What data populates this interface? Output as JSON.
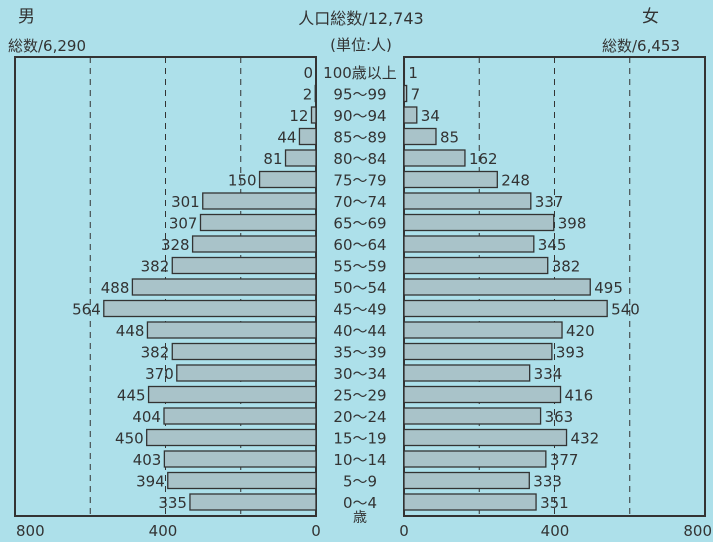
{
  "chart_data": {
    "type": "bar",
    "title": "人口総数/12,743",
    "subtitle": "(単位:人)",
    "male_label": "男",
    "male_total": "総数/6,290",
    "female_label": "女",
    "female_total": "総数/6,453",
    "age_unit": "歳",
    "categories": [
      "100歳以上",
      "95〜99",
      "90〜94",
      "85〜89",
      "80〜84",
      "75〜79",
      "70〜74",
      "65〜69",
      "60〜64",
      "55〜59",
      "50〜54",
      "45〜49",
      "40〜44",
      "35〜39",
      "30〜34",
      "25〜29",
      "20〜24",
      "15〜19",
      "10〜14",
      "5〜9",
      "0〜4"
    ],
    "series": [
      {
        "name": "男",
        "values": [
          0,
          2,
          12,
          44,
          81,
          150,
          301,
          307,
          328,
          382,
          488,
          564,
          448,
          382,
          370,
          445,
          404,
          450,
          403,
          394,
          335
        ]
      },
      {
        "name": "女",
        "values": [
          1,
          7,
          34,
          85,
          162,
          248,
          337,
          398,
          345,
          382,
          495,
          540,
          420,
          393,
          334,
          416,
          363,
          432,
          377,
          333,
          351
        ]
      }
    ],
    "x_ticks_left": [
      "800",
      "400",
      "0"
    ],
    "x_ticks_right": [
      "0",
      "400",
      "800"
    ],
    "xlim": [
      0,
      800
    ],
    "grid": "dashed",
    "colors": {
      "bar": "#a9c3c9",
      "background": "#ade0ea",
      "axis": "#333333"
    }
  }
}
